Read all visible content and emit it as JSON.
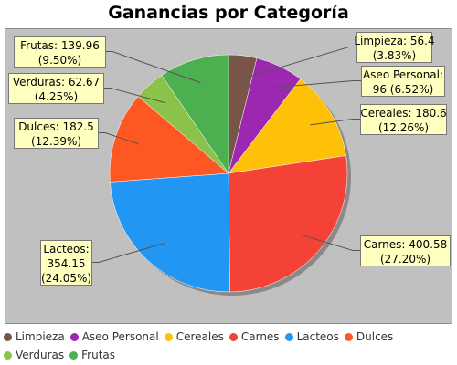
{
  "chart_data": {
    "type": "pie",
    "title": "Ganancias por Categoría",
    "slices": [
      {
        "name": "Limpieza",
        "value": 56.4,
        "percent": "3.83%",
        "color": "#795548"
      },
      {
        "name": "Aseo Personal",
        "value": 96,
        "percent": "6.52%",
        "color": "#9c27b0"
      },
      {
        "name": "Cereales",
        "value": 180.6,
        "percent": "12.26%",
        "color": "#ffc107"
      },
      {
        "name": "Carnes",
        "value": 400.58,
        "percent": "27.20%",
        "color": "#f44336"
      },
      {
        "name": "Lacteos",
        "value": 354.15,
        "percent": "24.05%",
        "color": "#2196f3"
      },
      {
        "name": "Dulces",
        "value": 182.5,
        "percent": "12.39%",
        "color": "#ff5722"
      },
      {
        "name": "Verduras",
        "value": 62.67,
        "percent": "4.25%",
        "color": "#8bc34a"
      },
      {
        "name": "Frutas",
        "value": 139.96,
        "percent": "9.50%",
        "color": "#4caf50"
      }
    ],
    "labels": [
      {
        "line1": "Limpieza: 56.4",
        "line2": "(3.83%)"
      },
      {
        "line1": "Aseo Personal:",
        "line2": "96 (6.52%)"
      },
      {
        "line1": "Cereales: 180.6",
        "line2": "(12.26%)"
      },
      {
        "line1": "Carnes: 400.58",
        "line2": "(27.20%)"
      },
      {
        "line1": "Lacteos:",
        "line2": "354.15",
        "line3": "(24.05%)"
      },
      {
        "line1": "Dulces: 182.5",
        "line2": "(12.39%)"
      },
      {
        "line1": "Verduras: 62.67",
        "line2": "(4.25%)"
      },
      {
        "line1": "Frutas: 139.96",
        "line2": "(9.50%)"
      }
    ],
    "legend_position": "bottom"
  }
}
